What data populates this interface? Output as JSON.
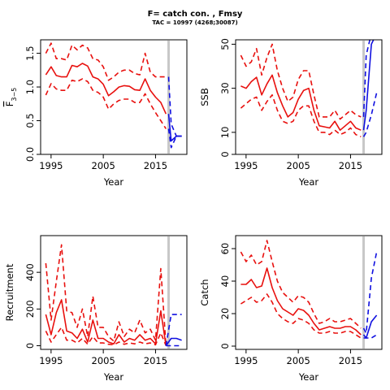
{
  "figure": {
    "title": "F= catch con. , Fmsy",
    "subtitle": "TAC = 10997 (4268;30087)"
  },
  "chart_data": [
    {
      "type": "line",
      "name": "fbar",
      "title": "",
      "xlabel": "Year",
      "ylabel_main": "F",
      "ylabel_sub": "3−5",
      "xlim": [
        1993,
        2021
      ],
      "ylim": [
        0,
        1.7
      ],
      "xticks": [
        1995,
        2005,
        2015
      ],
      "yticks": [
        0.0,
        0.5,
        1.0,
        1.5
      ],
      "ytick_labels": [
        "0.0",
        "0.5",
        "1.0",
        "1.5"
      ],
      "vline_x": 2017.5,
      "hist": {
        "x": [
          1994,
          1995,
          1996,
          1997,
          1998,
          1999,
          2000,
          2001,
          2002,
          2003,
          2004,
          2005,
          2006,
          2007,
          2008,
          2009,
          2010,
          2011,
          2012,
          2013,
          2014,
          2015,
          2016,
          2017
        ],
        "median": [
          1.18,
          1.3,
          1.17,
          1.15,
          1.15,
          1.32,
          1.3,
          1.35,
          1.31,
          1.15,
          1.12,
          1.04,
          0.87,
          0.93,
          1.0,
          1.02,
          1.01,
          0.96,
          0.95,
          1.12,
          0.95,
          0.85,
          0.77,
          0.6
        ],
        "lower": [
          0.88,
          1.05,
          0.97,
          0.95,
          0.95,
          1.1,
          1.08,
          1.12,
          1.08,
          0.95,
          0.92,
          0.85,
          0.67,
          0.75,
          0.8,
          0.82,
          0.82,
          0.77,
          0.77,
          0.9,
          0.75,
          0.62,
          0.5,
          0.38
        ],
        "upper": [
          1.5,
          1.65,
          1.42,
          1.42,
          1.4,
          1.62,
          1.55,
          1.62,
          1.58,
          1.42,
          1.4,
          1.3,
          1.1,
          1.15,
          1.22,
          1.25,
          1.25,
          1.2,
          1.18,
          1.5,
          1.22,
          1.15,
          1.15,
          1.15
        ]
      },
      "proj": {
        "x": [
          2017.5,
          2018,
          2019,
          2020
        ],
        "median": [
          0.6,
          0.2,
          0.27,
          0.27
        ],
        "lower": [
          0.38,
          0.1,
          0.27,
          0.27
        ],
        "upper": [
          1.15,
          0.45,
          0.27,
          0.27
        ]
      }
    },
    {
      "type": "line",
      "name": "ssb",
      "title": "",
      "xlabel": "Year",
      "ylabel_main": "SSB",
      "ylabel_sub": "",
      "xlim": [
        1993,
        2021
      ],
      "ylim": [
        0,
        52
      ],
      "xticks": [
        1995,
        2005,
        2015
      ],
      "yticks": [
        0,
        10,
        30,
        50
      ],
      "ytick_labels": [
        "0",
        "10",
        "30",
        "50"
      ],
      "vline_x": 2017.5,
      "hist": {
        "x": [
          1994,
          1995,
          1996,
          1997,
          1998,
          1999,
          2000,
          2001,
          2002,
          2003,
          2004,
          2005,
          2006,
          2007,
          2008,
          2009,
          2010,
          2011,
          2012,
          2013,
          2014,
          2015,
          2016,
          2017
        ],
        "median": [
          31,
          30,
          33,
          35,
          27,
          32,
          36,
          28,
          22,
          17,
          19,
          25,
          29,
          30,
          20,
          13,
          12.5,
          12,
          15,
          11,
          13,
          15,
          12,
          11
        ],
        "lower": [
          21,
          23,
          25,
          26,
          20,
          24,
          27,
          20,
          15,
          14,
          15,
          20,
          22,
          22,
          15,
          10,
          10,
          9,
          11,
          9,
          10,
          12,
          9,
          8
        ],
        "upper": [
          45,
          40,
          42,
          48,
          36,
          44,
          50,
          38,
          30,
          24,
          26,
          34,
          38,
          38,
          27,
          17,
          17,
          17,
          20,
          16,
          18,
          20,
          18,
          17
        ]
      },
      "proj": {
        "x": [
          2017.5,
          2018,
          2019,
          2020
        ],
        "median": [
          11,
          20,
          50,
          55
        ],
        "lower": [
          8,
          10,
          18,
          28
        ],
        "upper": [
          17,
          45,
          55,
          55
        ]
      }
    },
    {
      "type": "line",
      "name": "recruitment",
      "title": "",
      "xlabel": "Year",
      "ylabel_main": "Recruitment",
      "ylabel_sub": "",
      "xlim": [
        1993,
        2021
      ],
      "ylim": [
        -20,
        600
      ],
      "xticks": [
        1995,
        2005,
        2015
      ],
      "yticks": [
        0,
        200,
        400
      ],
      "ytick_labels": [
        "0",
        "200",
        "400"
      ],
      "vline_x": 2017.5,
      "hist": {
        "x": [
          1994,
          1995,
          1996,
          1997,
          1998,
          1999,
          2000,
          2001,
          2002,
          2003,
          2004,
          2005,
          2006,
          2007,
          2008,
          2009,
          2010,
          2011,
          2012,
          2013,
          2014,
          2015,
          2016,
          2017
        ],
        "median": [
          170,
          60,
          180,
          250,
          80,
          70,
          40,
          90,
          20,
          140,
          40,
          40,
          20,
          10,
          60,
          20,
          40,
          30,
          60,
          30,
          40,
          10,
          190,
          0
        ],
        "lower": [
          80,
          20,
          60,
          100,
          30,
          30,
          15,
          40,
          8,
          50,
          15,
          15,
          8,
          5,
          20,
          8,
          15,
          10,
          20,
          10,
          15,
          5,
          70,
          0
        ],
        "upper": [
          450,
          140,
          350,
          550,
          190,
          180,
          100,
          200,
          50,
          270,
          100,
          100,
          50,
          25,
          130,
          50,
          90,
          70,
          140,
          70,
          90,
          30,
          420,
          0
        ]
      },
      "proj": {
        "x": [
          2017,
          2018,
          2019,
          2020
        ],
        "median": [
          0,
          40,
          40,
          30
        ],
        "lower": [
          0,
          0,
          0,
          0
        ],
        "upper": [
          0,
          170,
          170,
          170
        ]
      }
    },
    {
      "type": "line",
      "name": "catch",
      "title": "",
      "xlabel": "Year",
      "ylabel_main": "Catch",
      "ylabel_sub": "",
      "xlim": [
        1993,
        2021
      ],
      "ylim": [
        -2,
        68
      ],
      "xticks": [
        1995,
        2005,
        2015
      ],
      "yticks": [
        0,
        20,
        40,
        60
      ],
      "ytick_labels": [
        "0",
        "20",
        "40",
        "60"
      ],
      "vline_x": 2017.5,
      "hist": {
        "x": [
          1994,
          1995,
          1996,
          1997,
          1998,
          1999,
          2000,
          2001,
          2002,
          2003,
          2004,
          2005,
          2006,
          2007,
          2008,
          2009,
          2010,
          2011,
          2012,
          2013,
          2014,
          2015,
          2016,
          2017
        ],
        "median": [
          38,
          38,
          41,
          36,
          37,
          48,
          36,
          28,
          23,
          21,
          19,
          23,
          22,
          19,
          14,
          10,
          11,
          12,
          11,
          11,
          12,
          12,
          10,
          7
        ],
        "lower": [
          26,
          28,
          30,
          27,
          28,
          32,
          27,
          20,
          17,
          15,
          14,
          17,
          16,
          14,
          10,
          8,
          8,
          9,
          8,
          8,
          9,
          9,
          7,
          5
        ],
        "upper": [
          58,
          52,
          56,
          50,
          52,
          65,
          52,
          40,
          33,
          30,
          27,
          31,
          30,
          27,
          20,
          14,
          15,
          17,
          15,
          15,
          16,
          17,
          14,
          11
        ]
      },
      "proj": {
        "x": [
          2017.5,
          2018,
          2019,
          2020
        ],
        "median": [
          7,
          5,
          15,
          19
        ],
        "lower": [
          5,
          5,
          5,
          7
        ],
        "upper": [
          11,
          8,
          42,
          58
        ]
      }
    }
  ]
}
